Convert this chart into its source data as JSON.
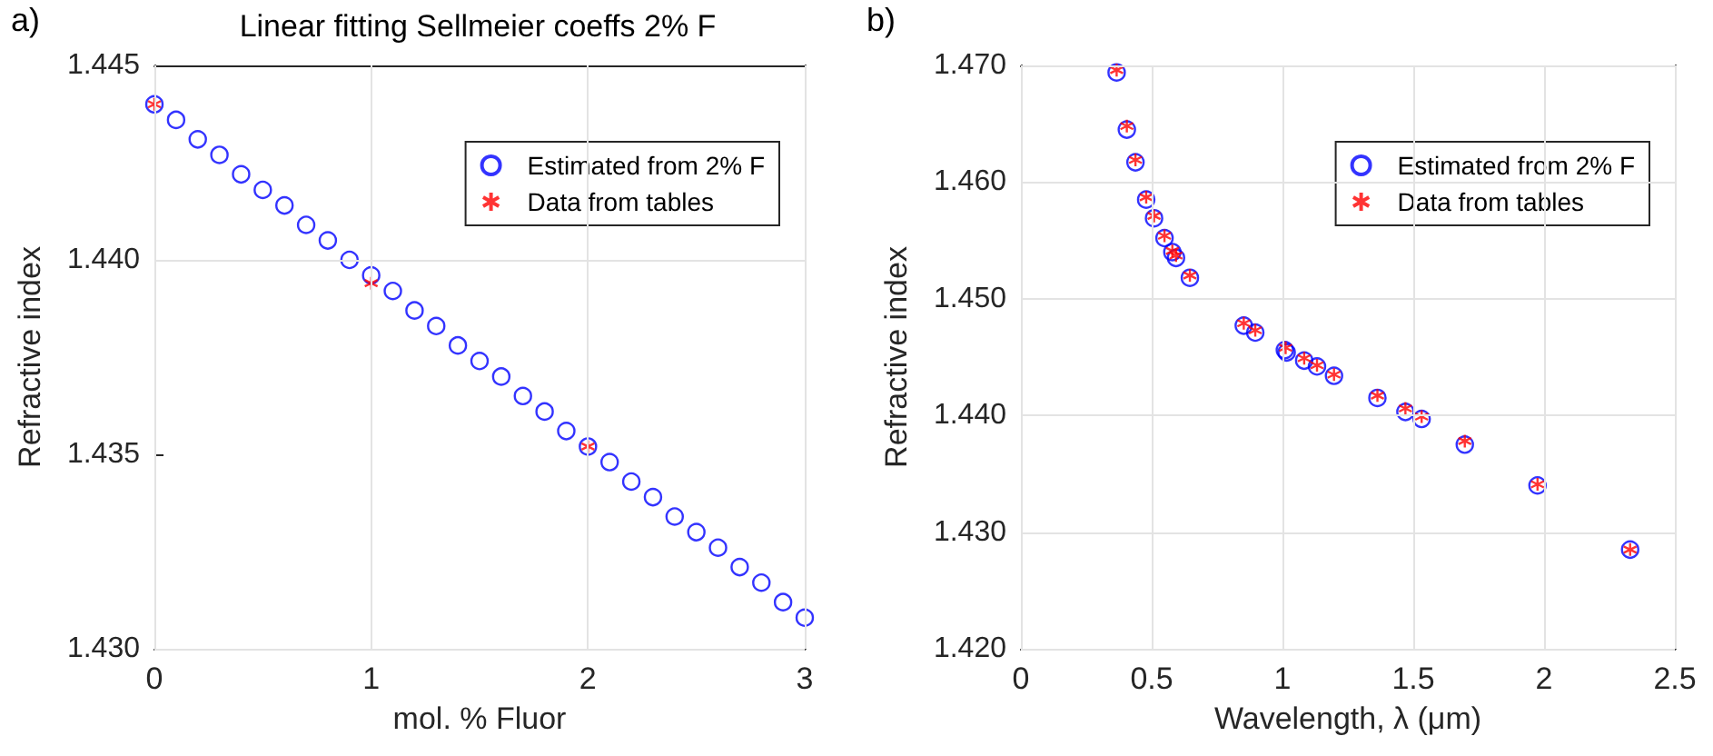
{
  "chart_data": [
    {
      "type": "scatter",
      "title": "Linear fitting Sellmeier coeffs 2% F",
      "xlabel": "mol. % Fluor",
      "ylabel": "Refractive index",
      "annotations": [
        "a)"
      ],
      "xlim": [
        0,
        3
      ],
      "xticks": [
        0,
        1,
        2,
        3
      ],
      "ylim": [
        1.43,
        1.445
      ],
      "yticks": [
        {
          "value": 1.43,
          "label": "1.430"
        },
        {
          "value": 1.435,
          "label": "1.435"
        },
        {
          "value": 1.44,
          "label": "1.440"
        },
        {
          "value": 1.445,
          "label": "1.445"
        }
      ],
      "grid": true,
      "legend": "top right",
      "series": [
        {
          "name": "Estimated from 2% F",
          "color": "#0000ff",
          "marker": "circle",
          "x": [
            0,
            0.1,
            0.2,
            0.3,
            0.4,
            0.5,
            0.6,
            0.7,
            0.8,
            0.9,
            1,
            1.1,
            1.2,
            1.3,
            1.4,
            1.5,
            1.6,
            1.7,
            1.8,
            1.9,
            2,
            2.1,
            2.2,
            2.3,
            2.4,
            2.5,
            2.6,
            2.7,
            2.8,
            2.9,
            3
          ],
          "values": [
            1.444,
            1.4436,
            1.4431,
            1.4427,
            1.4422,
            1.4418,
            1.4414,
            1.4409,
            1.4405,
            1.44,
            1.4396,
            1.4392,
            1.4387,
            1.4383,
            1.4378,
            1.4374,
            1.437,
            1.4365,
            1.4361,
            1.4356,
            1.4352,
            1.4348,
            1.4343,
            1.4339,
            1.4334,
            1.433,
            1.4326,
            1.4321,
            1.4317,
            1.4312,
            1.4308
          ]
        },
        {
          "name": "Data from tables",
          "color": "#ff0000",
          "marker": "cross",
          "x": [
            0,
            1,
            2
          ],
          "values": [
            1.444,
            1.4394,
            1.4352
          ]
        }
      ]
    },
    {
      "type": "scatter",
      "xlabel": "Wavelength, λ (μm)",
      "ylabel": "Refractive index",
      "annotations": [
        "b)"
      ],
      "xlim": [
        0,
        2.5
      ],
      "xticks": [
        0,
        0.5,
        1,
        1.5,
        2,
        2.5
      ],
      "ylim": [
        1.42,
        1.47
      ],
      "yticks": [
        {
          "value": 1.42,
          "label": "1.420"
        },
        {
          "value": 1.43,
          "label": "1.430"
        },
        {
          "value": 1.44,
          "label": "1.440"
        },
        {
          "value": 1.45,
          "label": "1.450"
        },
        {
          "value": 1.46,
          "label": "1.460"
        },
        {
          "value": 1.47,
          "label": "1.470"
        }
      ],
      "grid": true,
      "legend": "top right",
      "series": [
        {
          "name": "Estimated from 2% F",
          "color": "#0000ff",
          "marker": "circle",
          "x": [
            0.366,
            0.405,
            0.438,
            0.479,
            0.509,
            0.549,
            0.579,
            0.593,
            0.646,
            0.852,
            0.896,
            1.009,
            1.016,
            1.083,
            1.132,
            1.197,
            1.363,
            1.47,
            1.532,
            1.697,
            1.975,
            2.329
          ],
          "values": [
            1.4694,
            1.4645,
            1.4617,
            1.4585,
            1.4569,
            1.4552,
            1.454,
            1.4535,
            1.4518,
            1.4477,
            1.4471,
            1.4456,
            1.4454,
            1.4447,
            1.4442,
            1.4434,
            1.4415,
            1.4403,
            1.4397,
            1.4375,
            1.434,
            1.4285
          ]
        },
        {
          "name": "Data from tables",
          "color": "#ff0000",
          "marker": "cross",
          "x": [
            0.366,
            0.405,
            0.438,
            0.479,
            0.509,
            0.549,
            0.579,
            0.593,
            0.646,
            0.852,
            0.896,
            1.012,
            1.083,
            1.132,
            1.197,
            1.363,
            1.47,
            1.532,
            1.697,
            1.975,
            2.329
          ],
          "values": [
            1.4696,
            1.4648,
            1.4619,
            1.4587,
            1.4571,
            1.4554,
            1.4541,
            1.4537,
            1.452,
            1.4479,
            1.4473,
            1.4458,
            1.4449,
            1.4443,
            1.4435,
            1.4417,
            1.4406,
            1.4399,
            1.4378,
            1.4341,
            1.4285
          ]
        }
      ]
    }
  ]
}
